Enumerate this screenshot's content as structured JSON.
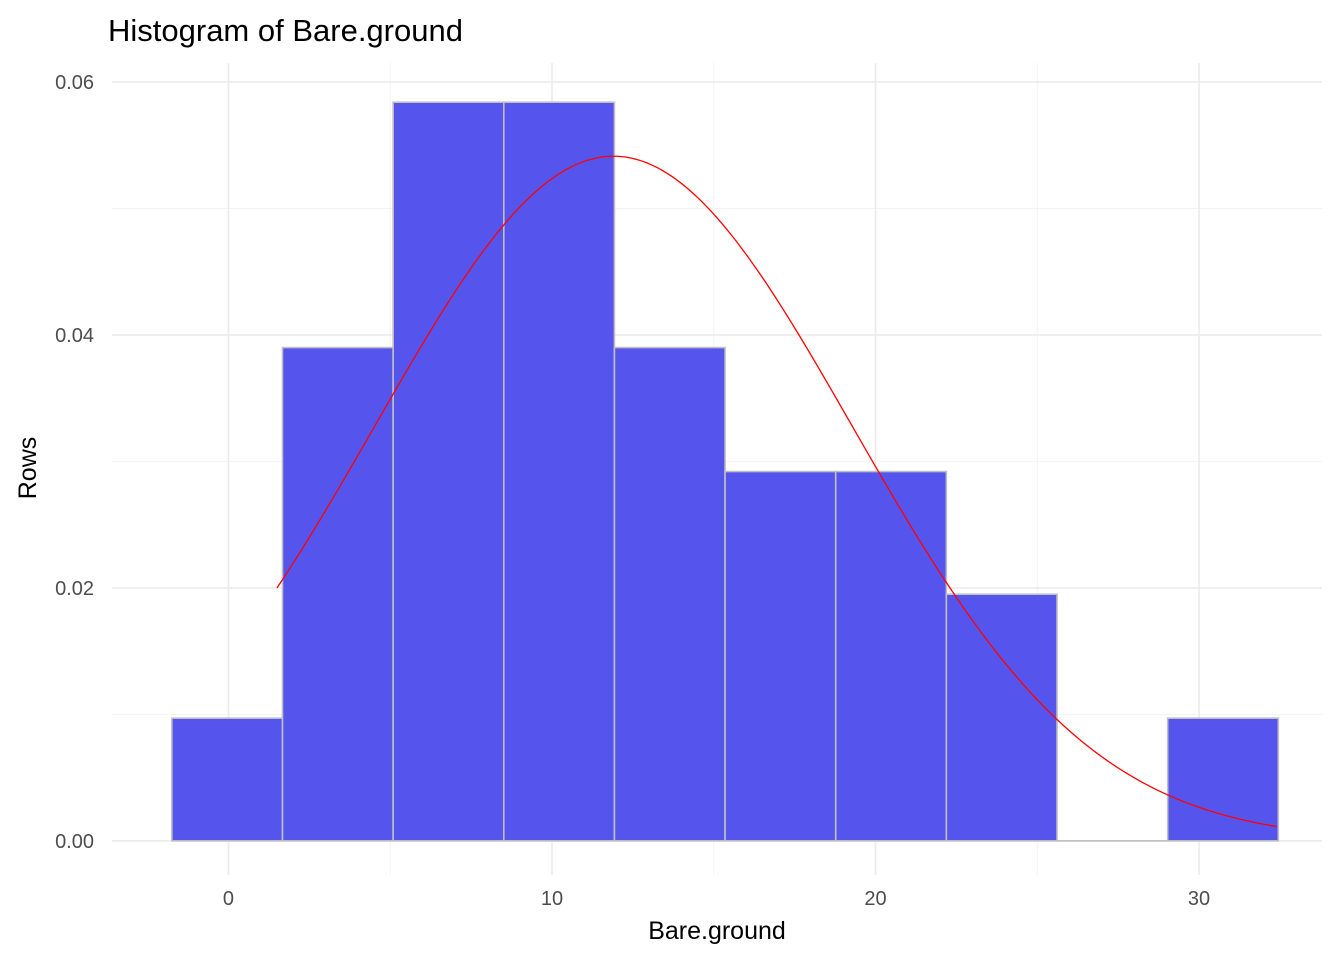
{
  "chart_data": {
    "type": "bar",
    "title": "Histogram of Bare.ground",
    "xlabel": "Bare.ground",
    "ylabel": "Rows",
    "xlim": [
      -3.6,
      33.8
    ],
    "ylim": [
      -0.0027,
      0.0615
    ],
    "x_ticks": [
      0,
      10,
      20,
      30
    ],
    "x_tick_labels": [
      "0",
      "10",
      "20",
      "30"
    ],
    "y_ticks": [
      0,
      0.02,
      0.04,
      0.06
    ],
    "y_tick_labels": [
      "0.00",
      "0.02",
      "0.04",
      "0.06"
    ],
    "grid": true,
    "bins": [
      {
        "x0": -1.75,
        "x1": 1.67,
        "density": 0.0097
      },
      {
        "x0": 1.67,
        "x1": 5.09,
        "density": 0.039
      },
      {
        "x0": 5.09,
        "x1": 8.51,
        "density": 0.0584
      },
      {
        "x0": 8.51,
        "x1": 11.93,
        "density": 0.0584
      },
      {
        "x0": 11.93,
        "x1": 15.35,
        "density": 0.039
      },
      {
        "x0": 15.35,
        "x1": 18.77,
        "density": 0.0292
      },
      {
        "x0": 18.77,
        "x1": 22.19,
        "density": 0.0292
      },
      {
        "x0": 22.19,
        "x1": 25.61,
        "density": 0.0195
      },
      {
        "x0": 25.61,
        "x1": 29.03,
        "density": 0
      },
      {
        "x0": 29.03,
        "x1": 32.45,
        "density": 0.0097
      }
    ],
    "density_curve": {
      "type": "line",
      "distribution": "normal",
      "mean": 11.9,
      "sd": 7.37,
      "x_range": [
        1.5,
        32.4
      ]
    },
    "colors": {
      "bar_fill": "#5555ee",
      "bar_outline": "#bfbfbf",
      "curve": "#ff0000",
      "grid": "#ebebeb"
    }
  }
}
